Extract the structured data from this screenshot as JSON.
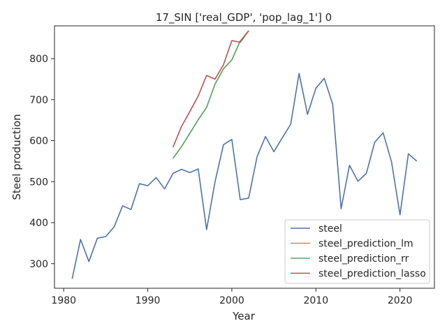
{
  "chart_data": {
    "type": "line",
    "title": "17_SIN ['real_GDP', 'pop_lag_1'] 0",
    "xlabel": "Year",
    "ylabel": "Steel production",
    "xlim": [
      1978.9,
      2024.1
    ],
    "ylim": [
      240,
      880
    ],
    "xticks": [
      1980,
      1990,
      2000,
      2010,
      2020
    ],
    "yticks": [
      300,
      400,
      500,
      600,
      700,
      800
    ],
    "grid": false,
    "legend_position": "lower-right",
    "series": [
      {
        "name": "steel",
        "color": "#4c72b0",
        "x": [
          1981,
          1982,
          1983,
          1984,
          1985,
          1986,
          1987,
          1988,
          1989,
          1990,
          1991,
          1992,
          1993,
          1994,
          1995,
          1996,
          1997,
          1998,
          1999,
          2000,
          2001,
          2002,
          2003,
          2004,
          2005,
          2006,
          2007,
          2008,
          2009,
          2010,
          2011,
          2012,
          2013,
          2014,
          2015,
          2016,
          2017,
          2018,
          2019,
          2020,
          2021,
          2022
        ],
        "y": [
          263,
          359,
          305,
          362,
          366,
          390,
          441,
          432,
          495,
          490,
          510,
          482,
          520,
          530,
          522,
          531,
          383,
          500,
          590,
          603,
          456,
          460,
          561,
          610,
          573,
          607,
          640,
          764,
          664,
          728,
          752,
          688,
          434,
          540,
          501,
          520,
          596,
          619,
          548,
          419,
          568,
          550
        ]
      },
      {
        "name": "steel_prediction_lm",
        "color": "#dd8452",
        "x": [
          1993,
          1994,
          1995,
          1996,
          1997,
          1998,
          1999,
          2000,
          2001,
          2002
        ],
        "y": [
          557,
          585,
          618,
          651,
          681,
          738,
          775,
          797,
          843,
          868
        ]
      },
      {
        "name": "steel_prediction_rr",
        "color": "#55a868",
        "x": [
          1993,
          1994,
          1995,
          1996,
          1997,
          1998,
          1999,
          2000,
          2001,
          2002
        ],
        "y": [
          557,
          585,
          618,
          651,
          681,
          738,
          775,
          797,
          843,
          868
        ]
      },
      {
        "name": "steel_prediction_lasso",
        "color": "#c44e52",
        "x": [
          1993,
          1994,
          1995,
          1996,
          1997,
          1998,
          1999,
          2000,
          2001,
          2002
        ],
        "y": [
          584,
          634,
          671,
          709,
          759,
          750,
          785,
          844,
          840,
          868
        ]
      }
    ]
  }
}
